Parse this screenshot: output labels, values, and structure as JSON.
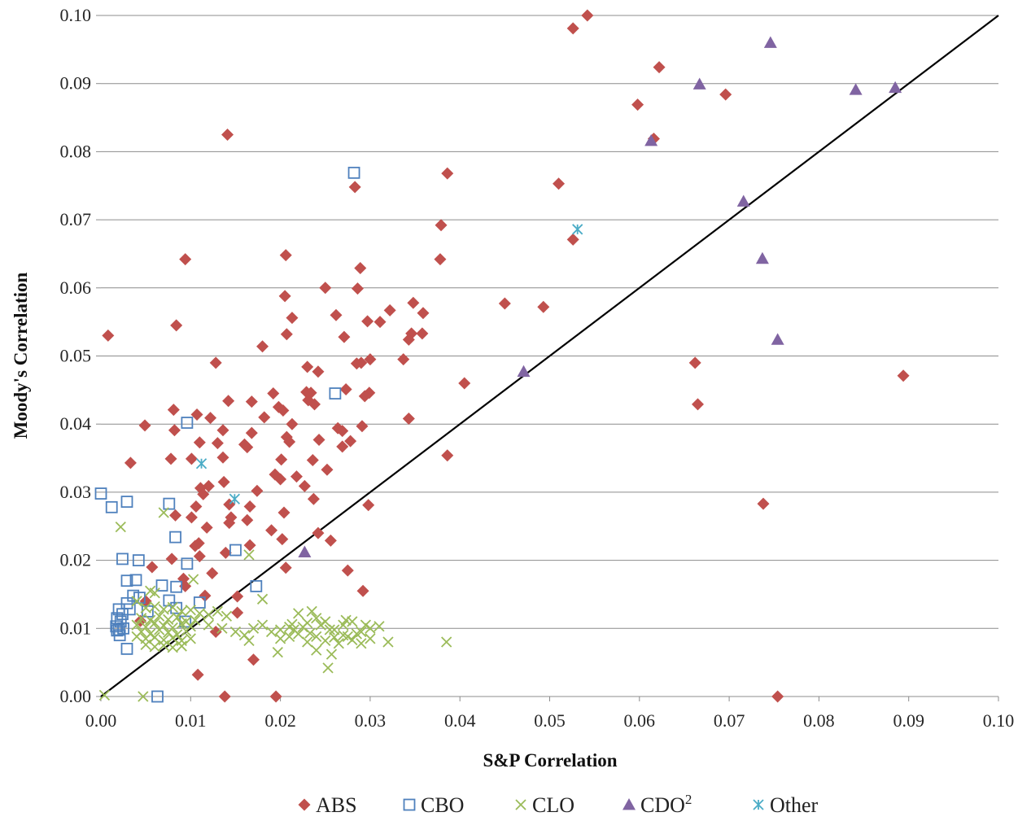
{
  "chart_data": {
    "type": "scatter",
    "xlabel": "S&P Correlation",
    "ylabel": "Moody's Correlation",
    "xlim": [
      0,
      0.1
    ],
    "ylim": [
      0,
      0.1
    ],
    "x_ticks": [
      "0.00",
      "0.01",
      "0.02",
      "0.03",
      "0.04",
      "0.05",
      "0.06",
      "0.07",
      "0.08",
      "0.09",
      "0.10"
    ],
    "y_ticks": [
      "0.00",
      "0.01",
      "0.02",
      "0.03",
      "0.04",
      "0.05",
      "0.06",
      "0.07",
      "0.08",
      "0.09",
      "0.10"
    ],
    "grid": "horizontal",
    "legend_position": "bottom",
    "reference_line": {
      "x": [
        0,
        0.1
      ],
      "y": [
        0,
        0.1
      ],
      "color": "#000000"
    },
    "series": [
      {
        "name": "ABS",
        "marker": "diamond",
        "color": "#C0504D",
        "label_sup": "",
        "points": [
          [
            0.0542,
            0.1
          ],
          [
            0.0526,
            0.0981
          ],
          [
            0.0622,
            0.0924
          ],
          [
            0.0598,
            0.0869
          ],
          [
            0.0696,
            0.0884
          ],
          [
            0.0616,
            0.0819
          ],
          [
            0.0141,
            0.0825
          ],
          [
            0.0386,
            0.0768
          ],
          [
            0.051,
            0.0753
          ],
          [
            0.0283,
            0.0748
          ],
          [
            0.0379,
            0.0692
          ],
          [
            0.0526,
            0.0671
          ],
          [
            0.0206,
            0.0648
          ],
          [
            0.0094,
            0.0642
          ],
          [
            0.0378,
            0.0642
          ],
          [
            0.0289,
            0.0629
          ],
          [
            0.025,
            0.06
          ],
          [
            0.0286,
            0.0599
          ],
          [
            0.0205,
            0.0588
          ],
          [
            0.045,
            0.0577
          ],
          [
            0.0493,
            0.0572
          ],
          [
            0.0348,
            0.0578
          ],
          [
            0.0322,
            0.0567
          ],
          [
            0.0359,
            0.0563
          ],
          [
            0.0262,
            0.056
          ],
          [
            0.0213,
            0.0556
          ],
          [
            0.0297,
            0.0551
          ],
          [
            0.0311,
            0.055
          ],
          [
            0.0358,
            0.0533
          ],
          [
            0.0346,
            0.0533
          ],
          [
            0.0207,
            0.0532
          ],
          [
            0.0271,
            0.0528
          ],
          [
            0.0343,
            0.0524
          ],
          [
            0.0008,
            0.053
          ],
          [
            0.0084,
            0.0545
          ],
          [
            0.018,
            0.0514
          ],
          [
            0.0337,
            0.0495
          ],
          [
            0.03,
            0.0495
          ],
          [
            0.029,
            0.049
          ],
          [
            0.0285,
            0.0489
          ],
          [
            0.0662,
            0.049
          ],
          [
            0.0128,
            0.049
          ],
          [
            0.023,
            0.0484
          ],
          [
            0.0242,
            0.0477
          ],
          [
            0.0405,
            0.046
          ],
          [
            0.0273,
            0.0451
          ],
          [
            0.0229,
            0.0447
          ],
          [
            0.0234,
            0.0446
          ],
          [
            0.0299,
            0.0446
          ],
          [
            0.0192,
            0.0445
          ],
          [
            0.0294,
            0.0441
          ],
          [
            0.0231,
            0.0435
          ],
          [
            0.0142,
            0.0434
          ],
          [
            0.0168,
            0.0433
          ],
          [
            0.0238,
            0.0429
          ],
          [
            0.0198,
            0.0425
          ],
          [
            0.0203,
            0.042
          ],
          [
            0.0665,
            0.0429
          ],
          [
            0.0081,
            0.0421
          ],
          [
            0.0107,
            0.0414
          ],
          [
            0.0122,
            0.0409
          ],
          [
            0.0182,
            0.041
          ],
          [
            0.0343,
            0.0408
          ],
          [
            0.0049,
            0.0398
          ],
          [
            0.0291,
            0.0397
          ],
          [
            0.0264,
            0.0394
          ],
          [
            0.0082,
            0.0391
          ],
          [
            0.0136,
            0.0391
          ],
          [
            0.0168,
            0.0387
          ],
          [
            0.0269,
            0.039
          ],
          [
            0.0213,
            0.04
          ],
          [
            0.0207,
            0.0381
          ],
          [
            0.0243,
            0.0377
          ],
          [
            0.0278,
            0.0375
          ],
          [
            0.011,
            0.0373
          ],
          [
            0.013,
            0.0372
          ],
          [
            0.016,
            0.037
          ],
          [
            0.021,
            0.0374
          ],
          [
            0.0163,
            0.0366
          ],
          [
            0.0269,
            0.0367
          ],
          [
            0.0101,
            0.0349
          ],
          [
            0.0078,
            0.0349
          ],
          [
            0.0136,
            0.0351
          ],
          [
            0.0201,
            0.0348
          ],
          [
            0.0236,
            0.0347
          ],
          [
            0.0386,
            0.0354
          ],
          [
            0.0894,
            0.0471
          ],
          [
            0.0033,
            0.0343
          ],
          [
            0.0252,
            0.0333
          ],
          [
            0.0194,
            0.0326
          ],
          [
            0.0218,
            0.0323
          ],
          [
            0.02,
            0.0319
          ],
          [
            0.0137,
            0.0315
          ],
          [
            0.012,
            0.0309
          ],
          [
            0.0111,
            0.0306
          ],
          [
            0.0174,
            0.0302
          ],
          [
            0.0227,
            0.0309
          ],
          [
            0.0114,
            0.0297
          ],
          [
            0.0237,
            0.029
          ],
          [
            0.0143,
            0.0282
          ],
          [
            0.0166,
            0.0279
          ],
          [
            0.0298,
            0.0281
          ],
          [
            0.0738,
            0.0283
          ],
          [
            0.0106,
            0.0279
          ],
          [
            0.0204,
            0.027
          ],
          [
            0.0083,
            0.0266
          ],
          [
            0.0101,
            0.0263
          ],
          [
            0.0145,
            0.0263
          ],
          [
            0.0143,
            0.0255
          ],
          [
            0.0163,
            0.0259
          ],
          [
            0.0118,
            0.0248
          ],
          [
            0.019,
            0.0244
          ],
          [
            0.0242,
            0.024
          ],
          [
            0.0202,
            0.0231
          ],
          [
            0.0256,
            0.0229
          ],
          [
            0.0109,
            0.0225
          ],
          [
            0.0105,
            0.0221
          ],
          [
            0.0166,
            0.0222
          ],
          [
            0.0139,
            0.0211
          ],
          [
            0.0079,
            0.0202
          ],
          [
            0.011,
            0.0206
          ],
          [
            0.0206,
            0.0189
          ],
          [
            0.0275,
            0.0185
          ],
          [
            0.0057,
            0.019
          ],
          [
            0.0092,
            0.0173
          ],
          [
            0.0094,
            0.0162
          ],
          [
            0.0124,
            0.0181
          ],
          [
            0.0152,
            0.0147
          ],
          [
            0.0292,
            0.0155
          ],
          [
            0.0116,
            0.0148
          ],
          [
            0.0152,
            0.0123
          ],
          [
            0.0128,
            0.0095
          ],
          [
            0.017,
            0.0054
          ],
          [
            0.0108,
            0.0032
          ],
          [
            0.0138,
            0.0
          ],
          [
            0.0195,
            0.0
          ],
          [
            0.0754,
            0.0
          ],
          [
            0.0044,
            0.0111
          ],
          [
            0.005,
            0.014
          ]
        ]
      },
      {
        "name": "CBO",
        "marker": "square-open",
        "color": "#4F81BD",
        "label_sup": "",
        "points": [
          [
            0.0282,
            0.0769
          ],
          [
            0.0261,
            0.0445
          ],
          [
            0.0096,
            0.0402
          ],
          [
            0.0,
            0.0298
          ],
          [
            0.0012,
            0.0278
          ],
          [
            0.0029,
            0.0286
          ],
          [
            0.0076,
            0.0283
          ],
          [
            0.0083,
            0.0234
          ],
          [
            0.015,
            0.0215
          ],
          [
            0.0024,
            0.0202
          ],
          [
            0.0042,
            0.02
          ],
          [
            0.0096,
            0.0195
          ],
          [
            0.0029,
            0.017
          ],
          [
            0.0039,
            0.0171
          ],
          [
            0.0068,
            0.0163
          ],
          [
            0.0084,
            0.0161
          ],
          [
            0.0173,
            0.0162
          ],
          [
            0.0036,
            0.0148
          ],
          [
            0.0043,
            0.0145
          ],
          [
            0.0076,
            0.0141
          ],
          [
            0.011,
            0.0138
          ],
          [
            0.0029,
            0.0137
          ],
          [
            0.0084,
            0.013
          ],
          [
            0.002,
            0.0128
          ],
          [
            0.0032,
            0.0128
          ],
          [
            0.0024,
            0.0121
          ],
          [
            0.0018,
            0.0115
          ],
          [
            0.0022,
            0.011
          ],
          [
            0.0017,
            0.0103
          ],
          [
            0.002,
            0.0098
          ],
          [
            0.0021,
            0.009
          ],
          [
            0.0094,
            0.011
          ],
          [
            0.0029,
            0.007
          ],
          [
            0.0063,
            0.0
          ],
          [
            0.0052,
            0.0125
          ],
          [
            0.0025,
            0.01
          ],
          [
            0.0018,
            0.0097
          ]
        ]
      },
      {
        "name": "CLO",
        "marker": "x",
        "color": "#9BBB59",
        "label_sup": "",
        "points": [
          [
            0.007,
            0.027
          ],
          [
            0.0022,
            0.0249
          ],
          [
            0.0165,
            0.0208
          ],
          [
            0.0103,
            0.0172
          ],
          [
            0.0055,
            0.0155
          ],
          [
            0.006,
            0.0152
          ],
          [
            0.018,
            0.0143
          ],
          [
            0.004,
            0.014
          ],
          [
            0.005,
            0.013
          ],
          [
            0.006,
            0.0132
          ],
          [
            0.007,
            0.0128
          ],
          [
            0.008,
            0.0131
          ],
          [
            0.009,
            0.0125
          ],
          [
            0.01,
            0.0127
          ],
          [
            0.011,
            0.0122
          ],
          [
            0.012,
            0.012
          ],
          [
            0.013,
            0.0125
          ],
          [
            0.014,
            0.0118
          ],
          [
            0.0045,
            0.0115
          ],
          [
            0.0055,
            0.0112
          ],
          [
            0.0065,
            0.0118
          ],
          [
            0.0075,
            0.0113
          ],
          [
            0.0085,
            0.0116
          ],
          [
            0.0095,
            0.011
          ],
          [
            0.0105,
            0.0112
          ],
          [
            0.004,
            0.0105
          ],
          [
            0.005,
            0.0102
          ],
          [
            0.006,
            0.0108
          ],
          [
            0.007,
            0.0104
          ],
          [
            0.008,
            0.0101
          ],
          [
            0.009,
            0.0107
          ],
          [
            0.01,
            0.0103
          ],
          [
            0.0045,
            0.0095
          ],
          [
            0.0055,
            0.0092
          ],
          [
            0.0065,
            0.0098
          ],
          [
            0.0075,
            0.0094
          ],
          [
            0.0085,
            0.0091
          ],
          [
            0.0095,
            0.0096
          ],
          [
            0.004,
            0.0088
          ],
          [
            0.005,
            0.0085
          ],
          [
            0.006,
            0.0087
          ],
          [
            0.007,
            0.0083
          ],
          [
            0.008,
            0.0086
          ],
          [
            0.009,
            0.0082
          ],
          [
            0.01,
            0.0085
          ],
          [
            0.005,
            0.0076
          ],
          [
            0.006,
            0.0073
          ],
          [
            0.007,
            0.0075
          ],
          [
            0.008,
            0.0072
          ],
          [
            0.009,
            0.0074
          ],
          [
            0.012,
            0.0105
          ],
          [
            0.0135,
            0.01
          ],
          [
            0.015,
            0.0095
          ],
          [
            0.016,
            0.009
          ],
          [
            0.017,
            0.01
          ],
          [
            0.018,
            0.0105
          ],
          [
            0.0165,
            0.0082
          ],
          [
            0.019,
            0.0095
          ],
          [
            0.02,
            0.0098
          ],
          [
            0.021,
            0.0102
          ],
          [
            0.022,
            0.0122
          ],
          [
            0.023,
            0.0108
          ],
          [
            0.024,
            0.0115
          ],
          [
            0.0235,
            0.0125
          ],
          [
            0.025,
            0.011
          ],
          [
            0.026,
            0.0098
          ],
          [
            0.027,
            0.0105
          ],
          [
            0.028,
            0.011
          ],
          [
            0.029,
            0.0095
          ],
          [
            0.03,
            0.01
          ],
          [
            0.031,
            0.0103
          ],
          [
            0.032,
            0.008
          ],
          [
            0.03,
            0.0085
          ],
          [
            0.029,
            0.0078
          ],
          [
            0.028,
            0.0083
          ],
          [
            0.027,
            0.009
          ],
          [
            0.026,
            0.0087
          ],
          [
            0.025,
            0.0082
          ],
          [
            0.024,
            0.0088
          ],
          [
            0.023,
            0.008
          ],
          [
            0.022,
            0.0092
          ],
          [
            0.021,
            0.0088
          ],
          [
            0.02,
            0.0085
          ],
          [
            0.0215,
            0.0098
          ],
          [
            0.0225,
            0.0102
          ],
          [
            0.0245,
            0.0105
          ],
          [
            0.0255,
            0.0098
          ],
          [
            0.0265,
            0.0078
          ],
          [
            0.0275,
            0.0088
          ],
          [
            0.0285,
            0.0092
          ],
          [
            0.0295,
            0.0105
          ],
          [
            0.0197,
            0.0065
          ],
          [
            0.0257,
            0.0062
          ],
          [
            0.0253,
            0.0042
          ],
          [
            0.0385,
            0.008
          ],
          [
            0.0004,
            0.0002
          ],
          [
            0.0047,
            0.0
          ],
          [
            0.024,
            0.0068
          ],
          [
            0.0213,
            0.0106
          ],
          [
            0.0233,
            0.0093
          ],
          [
            0.0273,
            0.0112
          ]
        ]
      },
      {
        "name": "CDO",
        "label_sup": "2",
        "marker": "triangle",
        "color": "#8064A2",
        "points": [
          [
            0.0746,
            0.096
          ],
          [
            0.0885,
            0.0894
          ],
          [
            0.0841,
            0.0891
          ],
          [
            0.0667,
            0.0899
          ],
          [
            0.0613,
            0.0816
          ],
          [
            0.0716,
            0.0727
          ],
          [
            0.0737,
            0.0643
          ],
          [
            0.0754,
            0.0524
          ],
          [
            0.0471,
            0.0477
          ],
          [
            0.0227,
            0.0212
          ]
        ]
      },
      {
        "name": "Other",
        "marker": "asterisk",
        "color": "#4BACC6",
        "label_sup": "",
        "points": [
          [
            0.0531,
            0.0686
          ],
          [
            0.0112,
            0.0342
          ],
          [
            0.0149,
            0.029
          ]
        ]
      }
    ]
  }
}
